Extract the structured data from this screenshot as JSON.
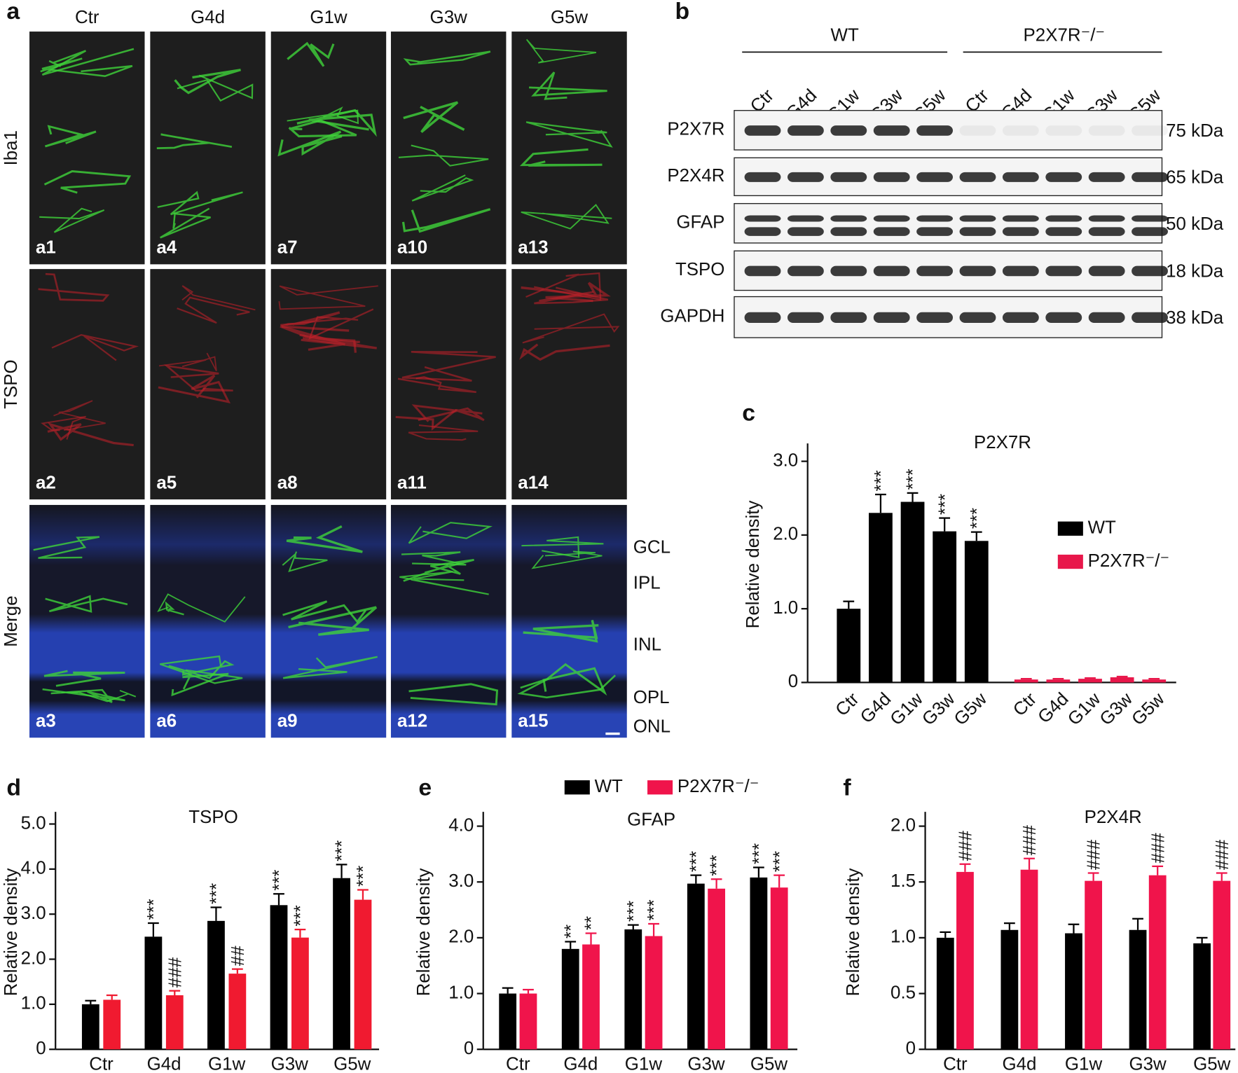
{
  "panel_a": {
    "label": "a",
    "columns": [
      "Ctr",
      "G4d",
      "G1w",
      "G3w",
      "G5w"
    ],
    "rows": [
      "Iba1",
      "TSPO",
      "Merge"
    ],
    "tiles": [
      "a1",
      "a2",
      "a3",
      "a4",
      "a5",
      "a6",
      "a7",
      "a8",
      "a9",
      "a10",
      "a11",
      "a12",
      "a13",
      "a14",
      "a15"
    ],
    "layers": [
      "GCL",
      "IPL",
      "INL",
      "OPL",
      "ONL"
    ]
  },
  "panel_b": {
    "label": "b",
    "groups": [
      "WT",
      "P2X7R⁻/⁻"
    ],
    "lanes": [
      "Ctr",
      "G4d",
      "G1w",
      "G3w",
      "G5w",
      "Ctr",
      "G4d",
      "G1w",
      "G3w",
      "G5w"
    ],
    "blots": [
      {
        "protein": "P2X7R",
        "size": "75 kDa"
      },
      {
        "protein": "P2X4R",
        "size": "65 kDa"
      },
      {
        "protein": "GFAP",
        "size": "50 kDa"
      },
      {
        "protein": "TSPO",
        "size": "18 kDa"
      },
      {
        "protein": "GAPDH",
        "size": "38 kDa"
      }
    ]
  },
  "chart_data": [
    {
      "type": "bar",
      "panel_label": "c",
      "title": "P2X7R",
      "y_label": "Relative density",
      "legend": "right",
      "categories": [
        "Ctr",
        "G4d",
        "G1w",
        "G3w",
        "G5w",
        "Ctr",
        "G4d",
        "G1w",
        "G3w",
        "G5w"
      ],
      "ylim": [
        0,
        3.2
      ],
      "yticks": [
        0,
        {
          "value": 1,
          "label": "1.0"
        },
        {
          "value": 2,
          "label": "2.0"
        },
        {
          "value": 3,
          "label": "3.0"
        }
      ],
      "series": [
        {
          "name": "WT",
          "color": "#000000",
          "values": [
            1.0,
            2.3,
            2.45,
            2.05,
            1.92,
            null,
            null,
            null,
            null,
            null
          ],
          "errors": [
            0.1,
            0.25,
            0.12,
            0.18,
            0.12,
            null,
            null,
            null,
            null,
            null
          ],
          "annotations": [
            null,
            "***",
            "***",
            "***",
            "***",
            null,
            null,
            null,
            null,
            null
          ]
        },
        {
          "name": "P2X7R⁻/⁻",
          "color": "#e8174a",
          "values": [
            null,
            null,
            null,
            null,
            null,
            0.04,
            0.04,
            0.05,
            0.07,
            0.04
          ],
          "errors": [
            null,
            null,
            null,
            null,
            null,
            0.01,
            0.01,
            0.01,
            0.01,
            0.01
          ],
          "annotations": [
            null,
            null,
            null,
            null,
            null,
            null,
            null,
            null,
            null,
            null
          ]
        }
      ]
    },
    {
      "type": "bar",
      "panel_label": "d",
      "title": "TSPO",
      "y_label": "Relative density",
      "categories": [
        "Ctr",
        "G4d",
        "G1w",
        "G3w",
        "G5w"
      ],
      "ylim": [
        0,
        5.2
      ],
      "yticks": [
        0,
        {
          "value": 1,
          "label": "1.0"
        },
        {
          "value": 2,
          "label": "2.0"
        },
        {
          "value": 3,
          "label": "3.0"
        },
        {
          "value": 4,
          "label": "4.0"
        },
        {
          "value": 5,
          "label": "5.0"
        }
      ],
      "series": [
        {
          "name": "WT",
          "color": "#000000",
          "values": [
            1.0,
            2.5,
            2.85,
            3.2,
            3.8
          ],
          "errors": [
            0.08,
            0.3,
            0.3,
            0.25,
            0.3
          ],
          "annotations": [
            null,
            "***",
            "***",
            "***",
            "***"
          ]
        },
        {
          "name": "P2X7R⁻/⁻",
          "color": "#f01a30",
          "values": [
            1.1,
            1.2,
            1.68,
            2.48,
            3.32
          ],
          "errors": [
            0.1,
            0.1,
            0.1,
            0.18,
            0.22
          ],
          "annotations": [
            null,
            "###",
            "##",
            "***",
            "***"
          ]
        }
      ]
    },
    {
      "type": "bar",
      "panel_label": "e",
      "title": "GFAP",
      "y_label": "Relative density",
      "legend": "top",
      "categories": [
        "Ctr",
        "G4d",
        "G1w",
        "G3w",
        "G5w"
      ],
      "ylim": [
        0,
        4.2
      ],
      "yticks": [
        0,
        {
          "value": 1,
          "label": "1.0"
        },
        {
          "value": 2,
          "label": "2.0"
        },
        {
          "value": 3,
          "label": "3.0"
        },
        {
          "value": 4,
          "label": "4.0"
        }
      ],
      "series": [
        {
          "name": "WT",
          "color": "#000000",
          "values": [
            1.0,
            1.8,
            2.15,
            2.97,
            3.08
          ],
          "errors": [
            0.1,
            0.13,
            0.08,
            0.15,
            0.18
          ],
          "annotations": [
            null,
            "**",
            "***",
            "***",
            "***"
          ]
        },
        {
          "name": "P2X7R⁻/⁻",
          "color": "#f0144b",
          "values": [
            1.0,
            1.88,
            2.03,
            2.88,
            2.9
          ],
          "errors": [
            0.07,
            0.2,
            0.22,
            0.17,
            0.22
          ],
          "annotations": [
            null,
            "**",
            "***",
            "***",
            "***"
          ]
        }
      ]
    },
    {
      "type": "bar",
      "panel_label": "f",
      "title": "P2X4R",
      "y_label": "Relative density",
      "categories": [
        "Ctr",
        "G4d",
        "G1w",
        "G3w",
        "G5w"
      ],
      "ylim": [
        0,
        2.1
      ],
      "yticks": [
        0,
        0.5,
        {
          "value": 1,
          "label": "1.0"
        },
        1.5,
        {
          "value": 2,
          "label": "2.0"
        }
      ],
      "series": [
        {
          "name": "WT",
          "color": "#000000",
          "values": [
            1.0,
            1.07,
            1.04,
            1.07,
            0.95
          ],
          "errors": [
            0.05,
            0.06,
            0.08,
            0.1,
            0.05
          ],
          "annotations": [
            null,
            null,
            null,
            null,
            null
          ]
        },
        {
          "name": "P2X7R⁻/⁻",
          "color": "#f0144b",
          "values": [
            1.59,
            1.61,
            1.51,
            1.56,
            1.51
          ],
          "errors": [
            0.07,
            0.1,
            0.07,
            0.08,
            0.07
          ],
          "annotations": [
            "###",
            "###",
            "###",
            "###",
            "###"
          ]
        }
      ]
    }
  ]
}
